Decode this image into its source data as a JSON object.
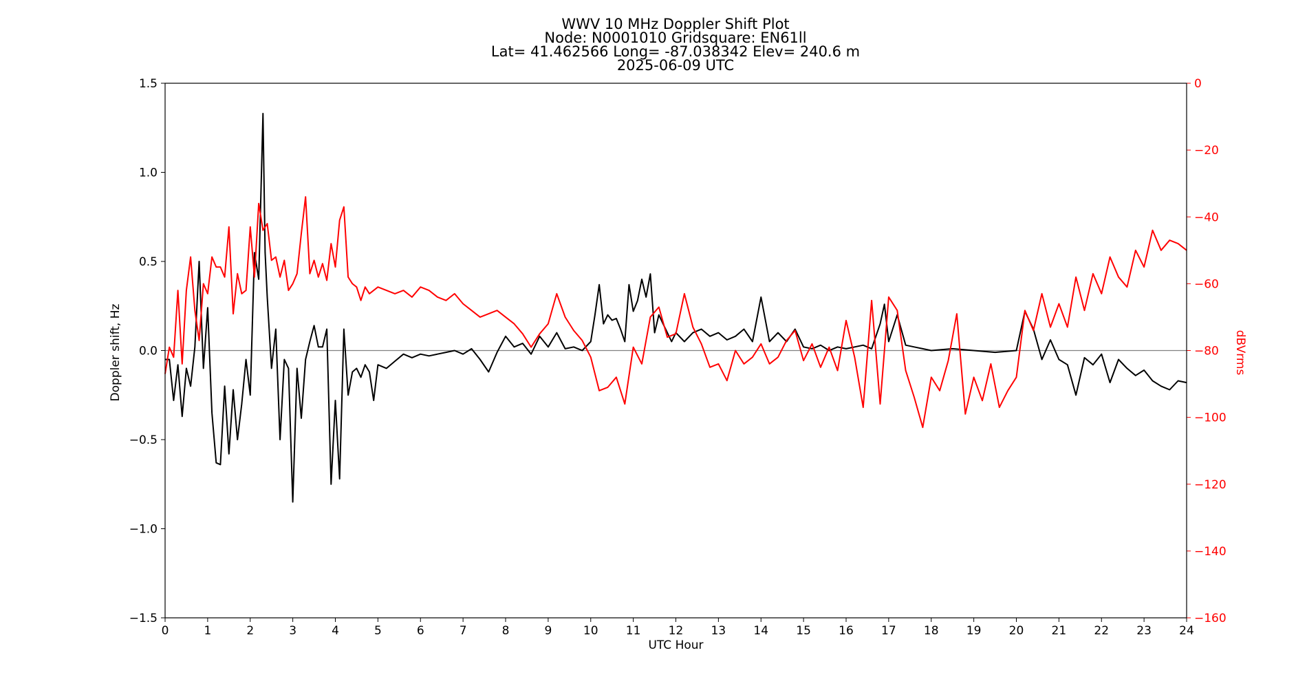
{
  "chart_data": {
    "type": "line",
    "title_lines": [
      "WWV 10 MHz Doppler Shift Plot",
      "Node:  N0001010     Gridsquare:  EN61ll",
      "Lat= 41.462566    Long= -87.038342    Elev= 240.6 m",
      "2025-06-09  UTC"
    ],
    "xlabel": "UTC Hour",
    "ylabel_left": "Doppler shift, Hz",
    "ylabel_right": "dBVrms",
    "xlim": [
      0,
      24
    ],
    "ylim_left": [
      -1.5,
      1.5
    ],
    "ylim_right": [
      -160,
      0
    ],
    "x_ticks": [
      0,
      1,
      2,
      3,
      4,
      5,
      6,
      7,
      8,
      9,
      10,
      11,
      12,
      13,
      14,
      15,
      16,
      17,
      18,
      19,
      20,
      21,
      22,
      23,
      24
    ],
    "x_tick_labels": [
      "0",
      "1",
      "2",
      "3",
      "4",
      "5",
      "6",
      "7",
      "8",
      "9",
      "10",
      "11",
      "12",
      "13",
      "14",
      "15",
      "16",
      "17",
      "18",
      "19",
      "20",
      "21",
      "22",
      "23",
      "24"
    ],
    "y_left_ticks": [
      1.5,
      1.0,
      0.5,
      0.0,
      -0.5,
      -1.0,
      -1.5
    ],
    "y_left_tick_labels": [
      "1.5",
      "1.0",
      "0.5",
      "0.0",
      "−0.5",
      "−1.0",
      "−1.5"
    ],
    "y_right_ticks": [
      0,
      -20,
      -40,
      -60,
      -80,
      -100,
      -120,
      -140,
      -160
    ],
    "y_right_tick_labels": [
      "0",
      "−20",
      "−40",
      "−60",
      "−80",
      "−100",
      "−120",
      "−140",
      "−160"
    ],
    "zero_line": 0.0,
    "colors": {
      "doppler": "#000000",
      "power": "#ff0000",
      "zero_line": "#808080",
      "right_axis": "#ff0000"
    },
    "series": [
      {
        "axis": "left",
        "x": [
          0,
          0.1,
          0.2,
          0.3,
          0.4,
          0.5,
          0.6,
          0.7,
          0.8,
          0.9,
          1.0,
          1.1,
          1.2,
          1.3,
          1.4,
          1.5,
          1.6,
          1.7,
          1.8,
          1.9,
          2.0,
          2.1,
          2.2,
          2.3,
          2.35,
          2.4,
          2.5,
          2.6,
          2.7,
          2.8,
          2.9,
          3.0,
          3.1,
          3.2,
          3.3,
          3.4,
          3.5,
          3.6,
          3.7,
          3.8,
          3.9,
          4.0,
          4.1,
          4.2,
          4.3,
          4.4,
          4.5,
          4.6,
          4.7,
          4.8,
          4.9,
          5.0,
          5.2,
          5.4,
          5.6,
          5.8,
          6.0,
          6.2,
          6.4,
          6.6,
          6.8,
          7.0,
          7.2,
          7.4,
          7.6,
          7.8,
          8.0,
          8.2,
          8.4,
          8.6,
          8.8,
          9.0,
          9.2,
          9.4,
          9.6,
          9.8,
          10.0,
          10.1,
          10.2,
          10.3,
          10.4,
          10.5,
          10.6,
          10.7,
          10.8,
          10.9,
          11.0,
          11.1,
          11.2,
          11.3,
          11.4,
          11.5,
          11.6,
          11.7,
          11.8,
          11.9,
          12.0,
          12.2,
          12.4,
          12.6,
          12.8,
          13.0,
          13.2,
          13.4,
          13.6,
          13.8,
          14.0,
          14.2,
          14.4,
          14.6,
          14.8,
          15.0,
          15.2,
          15.4,
          15.6,
          15.8,
          16.0,
          16.2,
          16.4,
          16.6,
          16.8,
          16.9,
          17.0,
          17.2,
          17.4,
          17.6,
          17.8,
          18.0,
          18.5,
          19.0,
          19.5,
          20.0,
          20.2,
          20.4,
          20.6,
          20.8,
          21.0,
          21.2,
          21.4,
          21.6,
          21.8,
          22.0,
          22.2,
          22.4,
          22.6,
          22.8,
          23.0,
          23.2,
          23.4,
          23.6,
          23.8,
          24.0
        ],
        "y": [
          -0.05,
          -0.05,
          -0.28,
          -0.08,
          -0.37,
          -0.1,
          -0.2,
          0.02,
          0.5,
          -0.1,
          0.24,
          -0.35,
          -0.63,
          -0.64,
          -0.2,
          -0.58,
          -0.22,
          -0.5,
          -0.3,
          -0.05,
          -0.25,
          0.55,
          0.4,
          1.33,
          0.55,
          0.3,
          -0.1,
          0.12,
          -0.5,
          -0.05,
          -0.1,
          -0.85,
          -0.1,
          -0.38,
          -0.05,
          0.05,
          0.14,
          0.02,
          0.02,
          0.12,
          -0.75,
          -0.28,
          -0.72,
          0.12,
          -0.25,
          -0.12,
          -0.1,
          -0.15,
          -0.08,
          -0.12,
          -0.28,
          -0.08,
          -0.1,
          -0.06,
          -0.02,
          -0.04,
          -0.02,
          -0.03,
          -0.02,
          -0.01,
          0.0,
          -0.02,
          0.01,
          -0.05,
          -0.12,
          -0.01,
          0.08,
          0.02,
          0.04,
          -0.02,
          0.08,
          0.02,
          0.1,
          0.01,
          0.02,
          0.0,
          0.05,
          0.2,
          0.37,
          0.15,
          0.2,
          0.17,
          0.18,
          0.12,
          0.05,
          0.37,
          0.22,
          0.28,
          0.4,
          0.3,
          0.43,
          0.1,
          0.2,
          0.15,
          0.1,
          0.05,
          0.1,
          0.05,
          0.1,
          0.12,
          0.08,
          0.1,
          0.06,
          0.08,
          0.12,
          0.05,
          0.3,
          0.05,
          0.1,
          0.05,
          0.12,
          0.02,
          0.01,
          0.03,
          0.0,
          0.02,
          0.01,
          0.02,
          0.03,
          0.01,
          0.15,
          0.26,
          0.05,
          0.2,
          0.03,
          0.02,
          0.01,
          0.0,
          0.01,
          0.0,
          -0.01,
          0.0,
          0.22,
          0.12,
          -0.05,
          0.06,
          -0.05,
          -0.08,
          -0.25,
          -0.04,
          -0.08,
          -0.02,
          -0.18,
          -0.05,
          -0.1,
          -0.14,
          -0.11,
          -0.17,
          -0.2,
          -0.22,
          -0.17,
          -0.18
        ]
      },
      {
        "axis": "right",
        "x": [
          0,
          0.1,
          0.2,
          0.3,
          0.4,
          0.5,
          0.6,
          0.7,
          0.8,
          0.9,
          1.0,
          1.1,
          1.2,
          1.3,
          1.4,
          1.5,
          1.6,
          1.7,
          1.8,
          1.9,
          2.0,
          2.1,
          2.2,
          2.3,
          2.4,
          2.5,
          2.6,
          2.7,
          2.8,
          2.9,
          3.0,
          3.1,
          3.2,
          3.3,
          3.4,
          3.5,
          3.6,
          3.7,
          3.8,
          3.9,
          4.0,
          4.1,
          4.2,
          4.3,
          4.4,
          4.5,
          4.6,
          4.7,
          4.8,
          5.0,
          5.2,
          5.4,
          5.6,
          5.8,
          6.0,
          6.2,
          6.4,
          6.6,
          6.8,
          7.0,
          7.2,
          7.4,
          7.6,
          7.8,
          8.0,
          8.2,
          8.4,
          8.6,
          8.8,
          9.0,
          9.2,
          9.4,
          9.6,
          9.8,
          10.0,
          10.2,
          10.4,
          10.6,
          10.8,
          11.0,
          11.2,
          11.4,
          11.6,
          11.8,
          12.0,
          12.2,
          12.4,
          12.6,
          12.8,
          13.0,
          13.2,
          13.4,
          13.6,
          13.8,
          14.0,
          14.2,
          14.4,
          14.6,
          14.8,
          15.0,
          15.2,
          15.4,
          15.6,
          15.8,
          16.0,
          16.2,
          16.4,
          16.6,
          16.8,
          17.0,
          17.2,
          17.4,
          17.6,
          17.8,
          18.0,
          18.2,
          18.4,
          18.6,
          18.8,
          19.0,
          19.2,
          19.4,
          19.6,
          19.8,
          20.0,
          20.2,
          20.4,
          20.6,
          20.8,
          21.0,
          21.2,
          21.4,
          21.6,
          21.8,
          22.0,
          22.2,
          22.4,
          22.6,
          22.8,
          23.0,
          23.2,
          23.4,
          23.6,
          23.8,
          24.0
        ],
        "y": [
          -87,
          -79,
          -82,
          -62,
          -84,
          -62,
          -52,
          -68,
          -77,
          -60,
          -63,
          -52,
          -55,
          -55,
          -58,
          -43,
          -69,
          -57,
          -63,
          -62,
          -43,
          -58,
          -36,
          -44,
          -42,
          -53,
          -52,
          -58,
          -53,
          -62,
          -60,
          -57,
          -45,
          -34,
          -57,
          -53,
          -58,
          -54,
          -59,
          -48,
          -55,
          -41,
          -37,
          -58,
          -60,
          -61,
          -65,
          -61,
          -63,
          -61,
          -62,
          -63,
          -62,
          -64,
          -61,
          -62,
          -64,
          -65,
          -63,
          -66,
          -68,
          -70,
          -69,
          -68,
          -70,
          -72,
          -75,
          -79,
          -75,
          -72,
          -63,
          -70,
          -74,
          -77,
          -82,
          -92,
          -91,
          -88,
          -96,
          -79,
          -84,
          -70,
          -67,
          -76,
          -75,
          -63,
          -73,
          -78,
          -85,
          -84,
          -89,
          -80,
          -84,
          -82,
          -78,
          -84,
          -82,
          -77,
          -74,
          -83,
          -78,
          -85,
          -79,
          -86,
          -71,
          -82,
          -97,
          -65,
          -96,
          -64,
          -68,
          -86,
          -94,
          -103,
          -88,
          -92,
          -83,
          -69,
          -99,
          -88,
          -95,
          -84,
          -97,
          -92,
          -88,
          -68,
          -74,
          -63,
          -73,
          -66,
          -73,
          -58,
          -68,
          -57,
          -63,
          -52,
          -58,
          -61,
          -50,
          -55,
          -44,
          -50,
          -47,
          -48,
          -50
        ]
      }
    ]
  }
}
